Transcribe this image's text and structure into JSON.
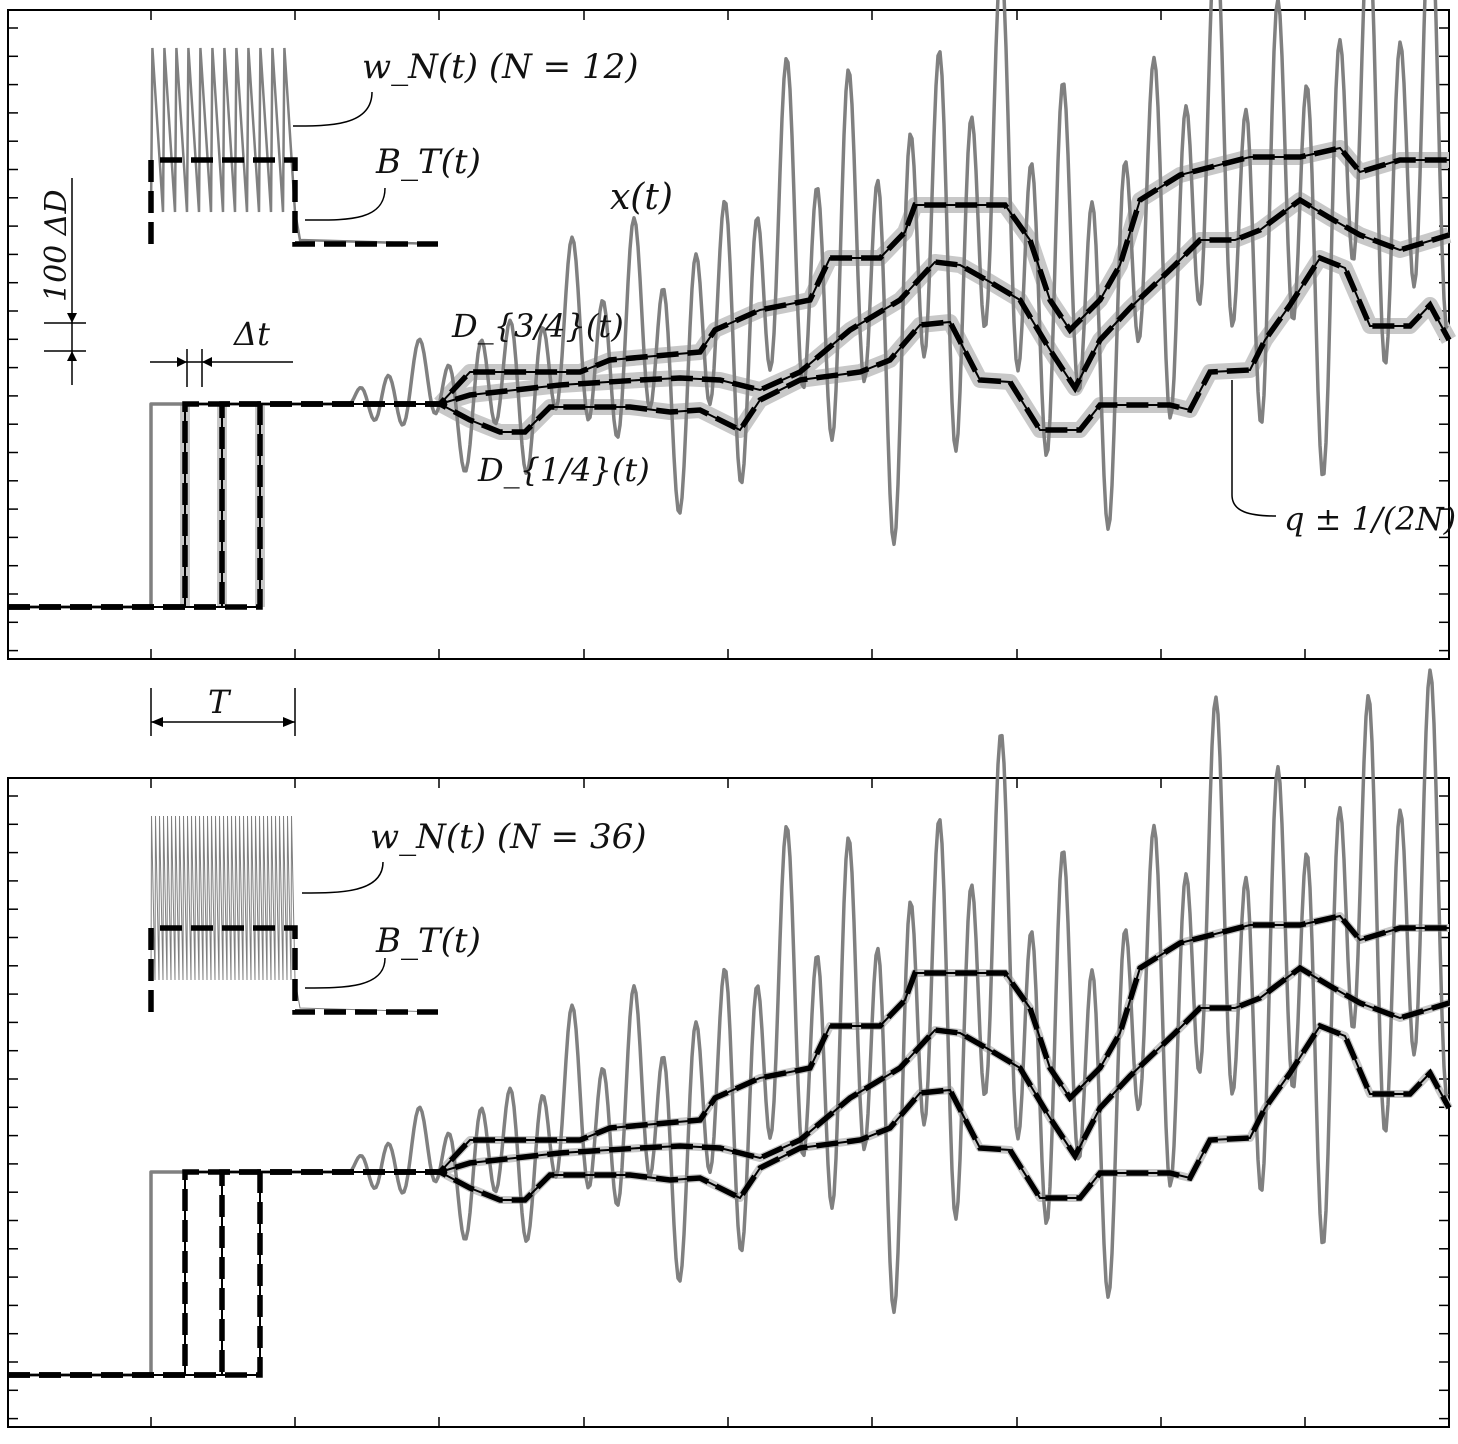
{
  "figure": {
    "colors": {
      "signal": "#808080",
      "band": "#c8c8c8",
      "quantile": "#000000",
      "frame": "#000000",
      "background": "#ffffff"
    },
    "top_panel": {
      "label_w": "w_N(t) (N = 12)",
      "label_b": "B_T(t)",
      "label_x": "x(t)",
      "label_d34": "D_{3/4}(t)",
      "label_d14": "D_{1/4}(t)",
      "label_q": "q ± 1/(2N)",
      "scale_dd": "100 ΔD",
      "scale_dt": "Δt",
      "period_label": "T"
    },
    "bottom_panel": {
      "label_w": "w_N(t) (N = 36)",
      "label_b": "B_T(t)"
    }
  },
  "chart_data": [
    {
      "type": "line",
      "panel": "top",
      "N": 12,
      "title": "",
      "xlabel": "",
      "ylabel": "",
      "grid": false,
      "legend": "none",
      "x_ticks": 10,
      "y_ticks": 23,
      "series": [
        {
          "name": "x(t)",
          "style": "gray solid",
          "x": [
            0,
            0.2,
            0.4,
            0.6,
            0.8,
            1.0
          ],
          "y": [
            0,
            0.2,
            0.5,
            0.7,
            1.0,
            0.7
          ]
        },
        {
          "name": "D_{3/4}(t)",
          "style": "black dashed + gray band",
          "x": [
            0,
            0.2,
            0.4,
            0.6,
            0.8,
            1.0
          ],
          "y": [
            0,
            0.1,
            0.3,
            0.6,
            0.8,
            0.9
          ]
        },
        {
          "name": "D_{1/4}(t)",
          "style": "black dashed + gray band",
          "x": [
            0,
            0.2,
            0.4,
            0.6,
            0.8,
            1.0
          ],
          "y": [
            0,
            -0.1,
            0.1,
            0.3,
            0.5,
            0.6
          ]
        }
      ]
    },
    {
      "type": "line",
      "panel": "bottom",
      "N": 36,
      "title": "",
      "xlabel": "",
      "ylabel": "",
      "grid": false,
      "legend": "none",
      "x_ticks": 10,
      "y_ticks": 23,
      "series": [
        {
          "name": "x(t)",
          "style": "gray solid",
          "x": [
            0,
            0.2,
            0.4,
            0.6,
            0.8,
            1.0
          ],
          "y": [
            0,
            0.2,
            0.5,
            0.7,
            1.0,
            0.7
          ]
        },
        {
          "name": "D_{3/4}(t)",
          "style": "black dashed",
          "x": [
            0,
            0.2,
            0.4,
            0.6,
            0.8,
            1.0
          ],
          "y": [
            0,
            0.1,
            0.3,
            0.6,
            0.8,
            0.9
          ]
        },
        {
          "name": "D_{1/4}(t)",
          "style": "black dashed",
          "x": [
            0,
            0.2,
            0.4,
            0.6,
            0.8,
            1.0
          ],
          "y": [
            0,
            -0.1,
            0.1,
            0.3,
            0.5,
            0.6
          ]
        }
      ]
    }
  ]
}
